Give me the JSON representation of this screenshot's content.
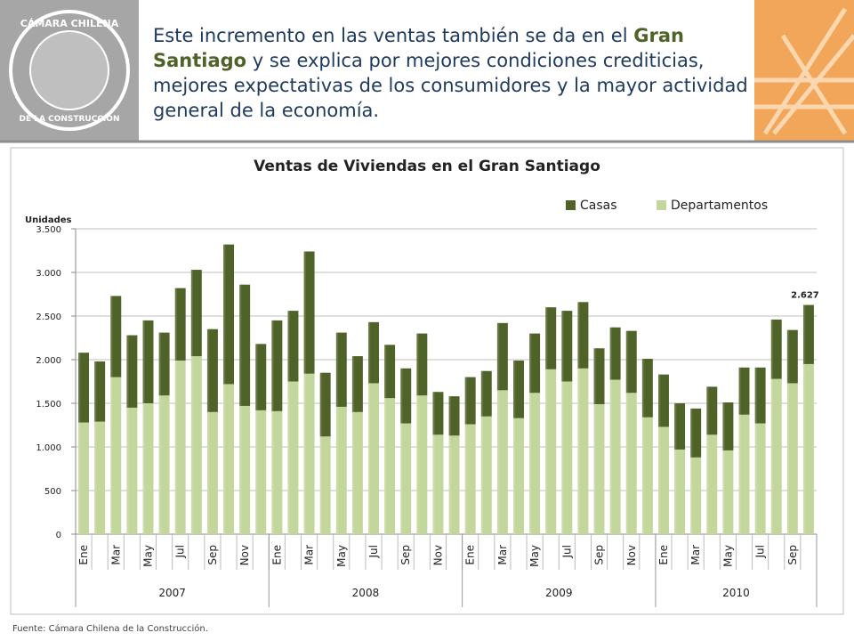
{
  "header": {
    "logo_top": "CÁMARA CHILENA",
    "logo_bottom": "DE LA CONSTRUCCIÓN",
    "text_parts": [
      "Este incremento en las ventas también se da en el ",
      "Gran Santiago",
      " y se explica por mejores condiciones crediticias, mejores expectativas de los consumidores y la mayor actividad general de la economía."
    ]
  },
  "chart_data": {
    "type": "stacked_bar",
    "title": "Ventas de Viviendas en el Gran Santiago",
    "y_label": "Unidades",
    "categories": [
      "Ene",
      null,
      "Mar",
      null,
      "May",
      null,
      "Jul",
      null,
      "Sep",
      null,
      "Nov",
      null,
      "Ene",
      null,
      "Mar",
      null,
      "May",
      null,
      "Jul",
      null,
      "Sep",
      null,
      "Nov",
      null,
      "Ene",
      null,
      "Mar",
      null,
      "May",
      null,
      "Jul",
      null,
      "Sep",
      null,
      "Nov",
      null,
      "Ene",
      null,
      "Mar",
      null,
      "May",
      null,
      "Jul",
      null,
      "Sep",
      null
    ],
    "groups": [
      {
        "label": "2007",
        "span": 12
      },
      {
        "label": "2008",
        "span": 12
      },
      {
        "label": "2009",
        "span": 12
      },
      {
        "label": "2010",
        "span": 10
      }
    ],
    "series": [
      {
        "name": "Casas",
        "color": "#4f6228",
        "values": [
          800,
          690,
          930,
          830,
          950,
          720,
          830,
          990,
          950,
          1600,
          1390,
          760,
          1040,
          810,
          1400,
          730,
          850,
          640,
          700,
          610,
          630,
          710,
          490,
          450,
          540,
          520,
          770,
          660,
          680,
          710,
          810,
          760,
          640,
          600,
          710,
          670,
          600,
          530,
          560,
          550,
          550,
          540,
          640,
          680,
          610,
          677
        ]
      },
      {
        "name": "Departamentos",
        "color": "#c3d69b",
        "values": [
          1280,
          1290,
          1800,
          1450,
          1500,
          1590,
          1990,
          2040,
          1400,
          1720,
          1470,
          1420,
          1410,
          1750,
          1840,
          1120,
          1460,
          1400,
          1730,
          1560,
          1270,
          1590,
          1140,
          1130,
          1260,
          1350,
          1650,
          1330,
          1620,
          1890,
          1750,
          1900,
          1490,
          1770,
          1620,
          1340,
          1230,
          970,
          880,
          1140,
          960,
          1370,
          1270,
          1780,
          1730,
          1950
        ]
      }
    ],
    "annotation": {
      "value": 2627,
      "label": "2.627"
    },
    "ylim": [
      0,
      3500
    ],
    "yticks": [
      0,
      500,
      {
        "value": 1000,
        "label": "1.000"
      },
      {
        "value": 1500,
        "label": "1.500"
      },
      {
        "value": 2000,
        "label": "2.000"
      },
      {
        "value": 2500,
        "label": "2.500"
      },
      {
        "value": 3000,
        "label": "3.000"
      },
      {
        "value": 3500,
        "label": "3.500"
      }
    ],
    "grid": true,
    "legend": "top-right",
    "source": "Fuente: Cámara Chilena de la Construcción."
  }
}
